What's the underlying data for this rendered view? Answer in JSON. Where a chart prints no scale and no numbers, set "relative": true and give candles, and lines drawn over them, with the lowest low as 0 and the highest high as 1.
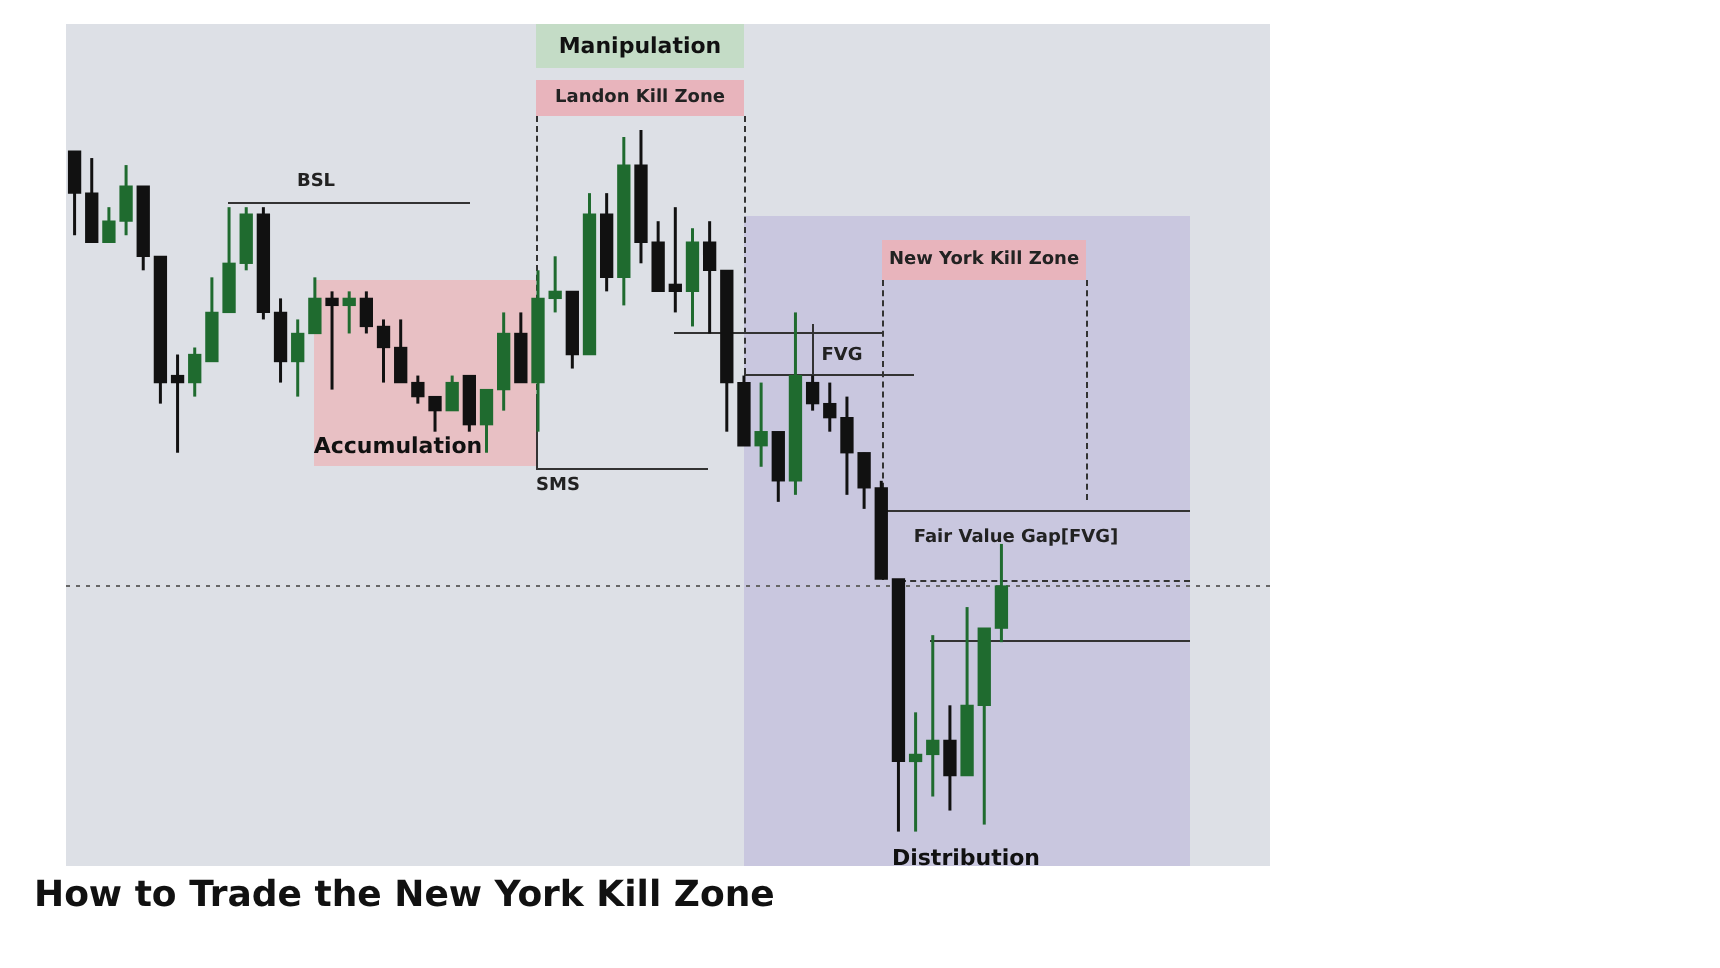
{
  "chart_data": {
    "type": "candlestick",
    "title": "How to Trade the New York Kill Zone",
    "relative": true,
    "legend": false,
    "categories": [
      null,
      null,
      null,
      null,
      null,
      null,
      null,
      null,
      null,
      null,
      null,
      null,
      null,
      null,
      null,
      null,
      null,
      null,
      null,
      null,
      null,
      null,
      null,
      null,
      null,
      null,
      null,
      null,
      null,
      null,
      null,
      null,
      null,
      null,
      null,
      null,
      null,
      null,
      null,
      null,
      null,
      null,
      null,
      null,
      null,
      null,
      null,
      null,
      null,
      null,
      null,
      null,
      null,
      null,
      null
    ],
    "ohlc": [
      [
        0.97,
        0.97,
        0.85,
        0.91
      ],
      [
        0.91,
        0.96,
        0.84,
        0.84
      ],
      [
        0.84,
        0.89,
        0.84,
        0.87
      ],
      [
        0.87,
        0.95,
        0.85,
        0.92
      ],
      [
        0.92,
        0.92,
        0.8,
        0.82
      ],
      [
        0.82,
        0.82,
        0.61,
        0.64
      ],
      [
        0.65,
        0.68,
        0.54,
        0.64
      ],
      [
        0.64,
        0.69,
        0.62,
        0.68
      ],
      [
        0.67,
        0.79,
        0.67,
        0.74
      ],
      [
        0.74,
        0.89,
        0.74,
        0.81
      ],
      [
        0.81,
        0.89,
        0.8,
        0.88
      ],
      [
        0.88,
        0.89,
        0.73,
        0.74
      ],
      [
        0.74,
        0.76,
        0.64,
        0.67
      ],
      [
        0.67,
        0.73,
        0.62,
        0.71
      ],
      [
        0.71,
        0.79,
        0.71,
        0.76
      ],
      [
        0.76,
        0.77,
        0.63,
        0.75
      ],
      [
        0.75,
        0.77,
        0.71,
        0.76
      ],
      [
        0.76,
        0.77,
        0.71,
        0.72
      ],
      [
        0.72,
        0.73,
        0.64,
        0.69
      ],
      [
        0.69,
        0.73,
        0.64,
        0.64
      ],
      [
        0.64,
        0.65,
        0.61,
        0.62
      ],
      [
        0.62,
        0.62,
        0.57,
        0.6
      ],
      [
        0.6,
        0.65,
        0.6,
        0.64
      ],
      [
        0.65,
        0.65,
        0.57,
        0.58
      ],
      [
        0.58,
        0.63,
        0.54,
        0.63
      ],
      [
        0.63,
        0.74,
        0.6,
        0.71
      ],
      [
        0.71,
        0.74,
        0.64,
        0.64
      ],
      [
        0.64,
        0.8,
        0.57,
        0.76
      ],
      [
        0.76,
        0.82,
        0.74,
        0.77
      ],
      [
        0.77,
        0.77,
        0.66,
        0.68
      ],
      [
        0.68,
        0.91,
        0.68,
        0.88
      ],
      [
        0.88,
        0.91,
        0.77,
        0.79
      ],
      [
        0.79,
        0.99,
        0.75,
        0.95
      ],
      [
        0.95,
        1,
        0.81,
        0.84
      ],
      [
        0.84,
        0.87,
        0.77,
        0.77
      ],
      [
        0.78,
        0.89,
        0.74,
        0.77
      ],
      [
        0.77,
        0.86,
        0.72,
        0.84
      ],
      [
        0.84,
        0.87,
        0.71,
        0.8
      ],
      [
        0.8,
        0.8,
        0.57,
        0.64
      ],
      [
        0.64,
        0.65,
        0.55,
        0.55
      ],
      [
        0.55,
        0.64,
        0.52,
        0.57
      ],
      [
        0.57,
        0.57,
        0.47,
        0.5
      ],
      [
        0.5,
        0.74,
        0.48,
        0.65
      ],
      [
        0.64,
        0.65,
        0.6,
        0.61
      ],
      [
        0.61,
        0.64,
        0.57,
        0.59
      ],
      [
        0.59,
        0.62,
        0.48,
        0.54
      ],
      [
        0.54,
        0.54,
        0.46,
        0.49
      ],
      [
        0.49,
        0.5,
        0.36,
        0.36
      ],
      [
        0.36,
        0.36,
        0,
        0.1
      ],
      [
        0.1,
        0.17,
        0,
        0.11
      ],
      [
        0.11,
        0.28,
        0.05,
        0.13
      ],
      [
        0.13,
        0.18,
        0.03,
        0.08
      ],
      [
        0.08,
        0.32,
        0.08,
        0.18
      ],
      [
        0.18,
        0.29,
        0.01,
        0.29
      ],
      [
        0.29,
        0.41,
        0.27,
        0.35
      ]
    ],
    "colors": [
      "#111111",
      "#111111",
      "#1f6b2f",
      "#1f6b2f",
      "#111111",
      "#111111",
      "#111111",
      "#1f6b2f",
      "#1f6b2f",
      "#1f6b2f",
      "#1f6b2f",
      "#111111",
      "#111111",
      "#1f6b2f",
      "#1f6b2f",
      "#111111",
      "#1f6b2f",
      "#111111",
      "#111111",
      "#111111",
      "#111111",
      "#111111",
      "#1f6b2f",
      "#111111",
      "#1f6b2f",
      "#1f6b2f",
      "#111111",
      "#1f6b2f",
      "#1f6b2f",
      "#111111",
      "#1f6b2f",
      "#111111",
      "#1f6b2f",
      "#111111",
      "#111111",
      "#111111",
      "#1f6b2f",
      "#111111",
      "#111111",
      "#111111",
      "#1f6b2f",
      "#111111",
      "#1f6b2f",
      "#111111",
      "#111111",
      "#111111",
      "#111111",
      "#111111",
      "#111111",
      "#1f6b2f",
      "#1f6b2f",
      "#111111",
      "#1f6b2f",
      "#1f6b2f",
      "#1f6b2f"
    ],
    "ref_lines": [
      {
        "axis": "y",
        "value": 0.35,
        "color": "#666666",
        "line_style": "dotted"
      }
    ],
    "annotations": [
      "Manipulation",
      "Landon Kill Zone",
      "New York Kill Zone",
      "BSL",
      "SMS",
      "FVG",
      "Fair Value Gap[FVG]",
      "Accumulation",
      "Distribution"
    ]
  }
}
